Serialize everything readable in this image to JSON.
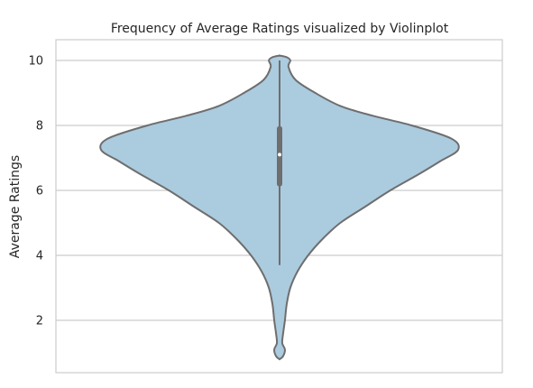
{
  "chart_data": {
    "type": "violin",
    "title": "Frequency of Average Ratings visualized by Violinplot",
    "xlabel": "",
    "ylabel": "Average Ratings",
    "ylim": [
      0.5,
      10.65
    ],
    "yticks": [
      2,
      4,
      6,
      8,
      10
    ],
    "grid": true,
    "grid_axis": "y",
    "legend": "none",
    "colors": {
      "violin_fill": "#abcbdf",
      "violin_edge": "#6e6e6e",
      "box": "#6e6e6e",
      "median": "#ffffff",
      "grid": "#cccccc",
      "frame": "#cccccc"
    },
    "violin": {
      "min": 0.8,
      "q1": 6.2,
      "median": 7.1,
      "q3": 7.9,
      "whisker_low": 3.7,
      "whisker_high": 10.0,
      "max": 10.15,
      "density_profile": [
        {
          "y": 0.8,
          "half_width": 0.0
        },
        {
          "y": 0.9,
          "half_width": 0.02
        },
        {
          "y": 1.1,
          "half_width": 0.03
        },
        {
          "y": 1.3,
          "half_width": 0.015
        },
        {
          "y": 1.6,
          "half_width": 0.02
        },
        {
          "y": 2.0,
          "half_width": 0.03
        },
        {
          "y": 2.5,
          "half_width": 0.04
        },
        {
          "y": 3.0,
          "half_width": 0.06
        },
        {
          "y": 3.5,
          "half_width": 0.1
        },
        {
          "y": 4.0,
          "half_width": 0.16
        },
        {
          "y": 4.5,
          "half_width": 0.24
        },
        {
          "y": 5.0,
          "half_width": 0.34
        },
        {
          "y": 5.5,
          "half_width": 0.48
        },
        {
          "y": 6.0,
          "half_width": 0.62
        },
        {
          "y": 6.5,
          "half_width": 0.78
        },
        {
          "y": 6.9,
          "half_width": 0.9
        },
        {
          "y": 7.25,
          "half_width": 1.0
        },
        {
          "y": 7.6,
          "half_width": 0.96
        },
        {
          "y": 8.0,
          "half_width": 0.74
        },
        {
          "y": 8.3,
          "half_width": 0.52
        },
        {
          "y": 8.6,
          "half_width": 0.34
        },
        {
          "y": 9.0,
          "half_width": 0.2
        },
        {
          "y": 9.4,
          "half_width": 0.09
        },
        {
          "y": 9.8,
          "half_width": 0.05
        },
        {
          "y": 10.0,
          "half_width": 0.06
        },
        {
          "y": 10.1,
          "half_width": 0.04
        },
        {
          "y": 10.15,
          "half_width": 0.0
        }
      ]
    }
  }
}
